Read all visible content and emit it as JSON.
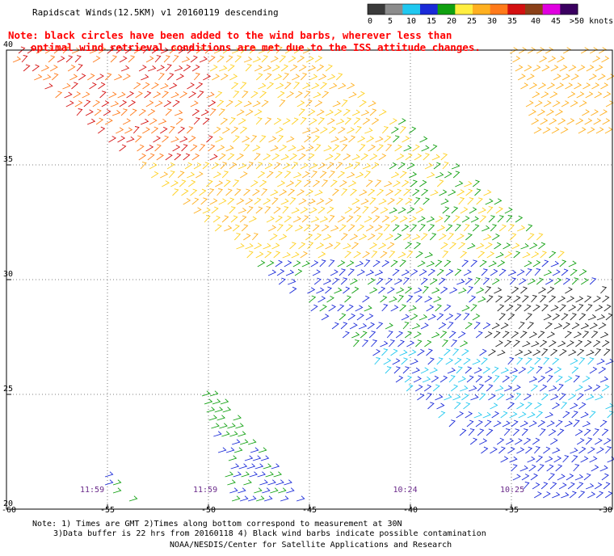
{
  "title": "Rapidscat Winds(12.5KM) v1 20160119 descending",
  "note_line1": "Note: black circles have been added to the wind barbs, wherever less than",
  "note_line2": "optimal wind retrieval conditions are met due to the ISS attitude changes.",
  "legend": {
    "labels": [
      "0",
      "5",
      "10",
      "15",
      "20",
      "25",
      "30",
      "35",
      "40",
      "45",
      ">50 knots"
    ],
    "colors": [
      "#3a3a3a",
      "#8c8c8c",
      "#20c8f0",
      "#1a2ad8",
      "#10a010",
      "#ffee40",
      "#ffb020",
      "#ff7a1a",
      "#d41010",
      "#8a4018",
      "#e000e0",
      "#3a0060"
    ]
  },
  "map_data": {
    "lat_labels": [
      "40",
      "35",
      "30",
      "25",
      "20"
    ],
    "lon_labels": [
      "-60",
      "-55",
      "-50",
      "-45",
      "-40",
      "-35",
      "-30"
    ],
    "lat_values": [
      40,
      35,
      30,
      25,
      20
    ],
    "lon_values": [
      -60,
      -55,
      -50,
      -45,
      -40,
      -35,
      -30
    ],
    "time_labels": [
      {
        "text": "11:59",
        "lon": -55.8
      },
      {
        "text": "11:59",
        "lon": -50.2
      },
      {
        "text": "10:24",
        "lon": -40.3
      },
      {
        "text": "10:25",
        "lon": -35.0
      }
    ]
  },
  "footer": {
    "line1": "Note: 1) Times are GMT 2)Times along bottom correspond to measurement at 30N",
    "line2": "3)Data buffer is 22 hrs from 20160118 4) Black wind barbs indicate possible contamination",
    "line3": "NOAA/NESDIS/Center for Satellite Applications and Research"
  }
}
